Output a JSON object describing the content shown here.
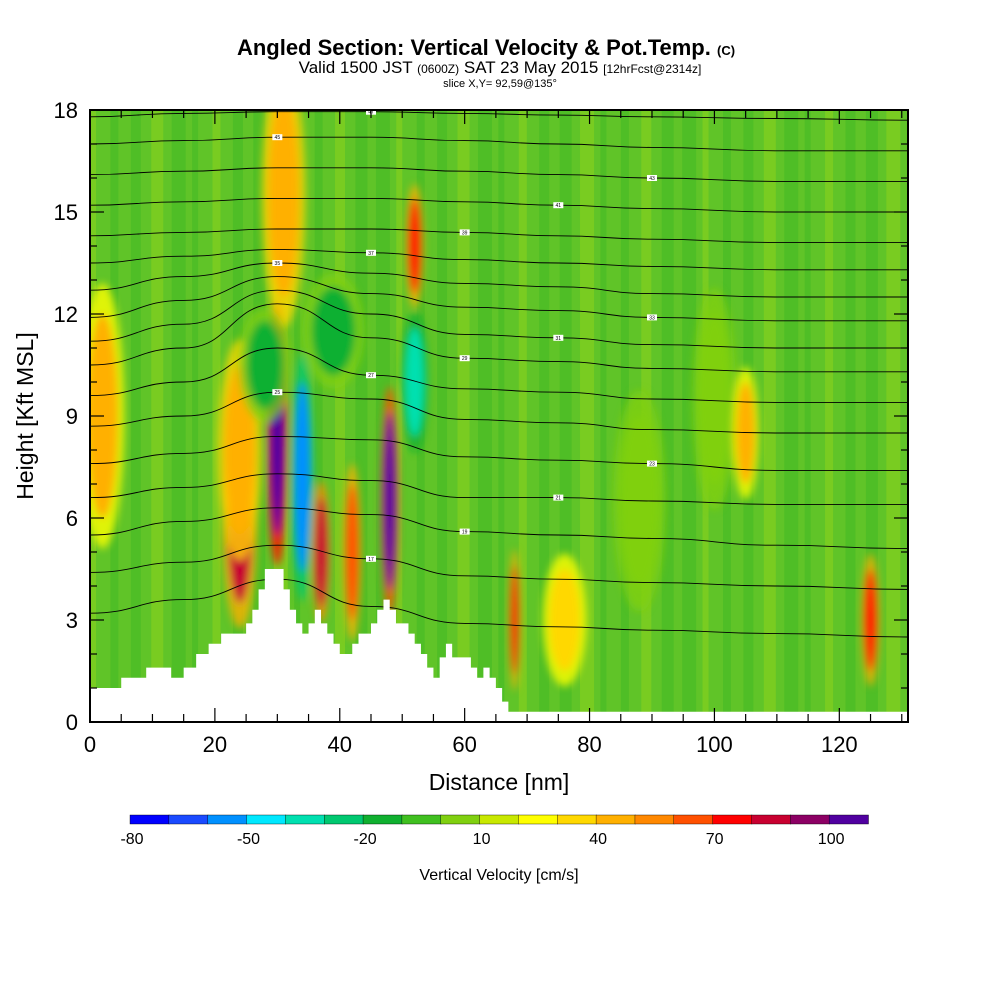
{
  "chart_data": {
    "type": "heatmap",
    "title": "Angled Section: Vertical Velocity & Pot.Temp.",
    "title_suffix": "(C)",
    "subtitle_parts": [
      "Valid 1500 JST",
      "(0600Z)",
      "SAT 23 May 2015",
      "[12hrFcst@2314z]"
    ],
    "subtitle2": "slice X,Y= 92,59@135°",
    "xlabel": "Distance [nm]",
    "ylabel": "Height [Kft MSL]",
    "xlim": [
      0,
      131
    ],
    "ylim": [
      0,
      18
    ],
    "x_ticks": [
      0,
      20,
      40,
      60,
      80,
      100,
      120
    ],
    "y_ticks": [
      0,
      3,
      6,
      9,
      12,
      15,
      18
    ],
    "colorbar": {
      "label": "Vertical Velocity [cm/s]",
      "tick_labels": [
        "-80",
        "-50",
        "-20",
        "10",
        "40",
        "70",
        "100"
      ],
      "colors": [
        "#0000ff",
        "#1a4aff",
        "#0090ff",
        "#00e8ff",
        "#00e0b0",
        "#00c870",
        "#10b030",
        "#40c020",
        "#80d010",
        "#c8e800",
        "#ffff00",
        "#ffd800",
        "#ffb000",
        "#ff8800",
        "#ff5000",
        "#ff0000",
        "#c80030",
        "#8c0064",
        "#5000a0"
      ]
    },
    "terrain_profile": {
      "x": [
        0,
        5,
        5,
        9,
        9,
        13,
        13,
        15,
        15,
        17,
        17,
        19,
        19,
        21,
        21,
        25,
        25,
        26,
        26,
        27,
        27,
        28,
        28,
        31,
        31,
        32,
        32,
        33,
        33,
        34,
        34,
        35,
        35,
        36,
        36,
        37,
        37,
        38,
        38,
        39,
        39,
        40,
        40,
        42,
        42,
        43,
        43,
        45,
        45,
        46,
        46,
        47,
        47,
        48,
        48,
        49,
        49,
        51,
        51,
        52,
        52,
        53,
        53,
        54,
        54,
        55,
        55,
        56,
        56,
        57,
        57,
        58,
        58,
        61,
        61,
        62,
        62,
        63,
        63,
        64,
        64,
        65,
        65,
        66,
        66,
        67,
        67,
        68,
        68,
        70,
        70,
        131
      ],
      "y": [
        1.0,
        1.0,
        1.3,
        1.3,
        1.6,
        1.6,
        1.3,
        1.3,
        1.6,
        1.6,
        2.0,
        2.0,
        2.3,
        2.3,
        2.6,
        2.6,
        2.9,
        2.9,
        3.3,
        3.3,
        3.9,
        3.9,
        4.5,
        4.5,
        3.9,
        3.9,
        3.3,
        3.3,
        2.9,
        2.9,
        2.6,
        2.6,
        2.9,
        2.9,
        3.3,
        3.3,
        2.9,
        2.9,
        2.6,
        2.6,
        2.3,
        2.3,
        2.0,
        2.0,
        2.3,
        2.3,
        2.6,
        2.6,
        2.9,
        2.9,
        3.3,
        3.3,
        3.6,
        3.6,
        3.3,
        3.3,
        2.9,
        2.9,
        2.6,
        2.6,
        2.3,
        2.3,
        2.0,
        2.0,
        1.6,
        1.6,
        1.3,
        1.3,
        1.9,
        1.9,
        2.3,
        2.3,
        1.9,
        1.9,
        1.6,
        1.6,
        1.3,
        1.3,
        1.6,
        1.6,
        1.3,
        1.3,
        1.0,
        1.0,
        0.6,
        0.6,
        0.3,
        0.3,
        0.3,
        0.3,
        0.3,
        0.3
      ]
    },
    "isentropes": [
      {
        "label": "15",
        "pts": [
          [
            0,
            3.2
          ],
          [
            15,
            3.6
          ],
          [
            30,
            4.2
          ],
          [
            45,
            3.4
          ],
          [
            60,
            2.9
          ],
          [
            75,
            2.8
          ],
          [
            90,
            2.7
          ],
          [
            110,
            2.6
          ],
          [
            131,
            2.5
          ]
        ]
      },
      {
        "label": "17",
        "pts": [
          [
            0,
            4.4
          ],
          [
            15,
            4.7
          ],
          [
            30,
            5.2
          ],
          [
            45,
            4.8
          ],
          [
            60,
            4.3
          ],
          [
            75,
            4.2
          ],
          [
            90,
            4.1
          ],
          [
            110,
            4.0
          ],
          [
            131,
            3.9
          ]
        ]
      },
      {
        "label": "19",
        "pts": [
          [
            0,
            5.5
          ],
          [
            15,
            5.9
          ],
          [
            30,
            6.3
          ],
          [
            45,
            6.1
          ],
          [
            60,
            5.6
          ],
          [
            75,
            5.5
          ],
          [
            90,
            5.4
          ],
          [
            110,
            5.2
          ],
          [
            131,
            5.1
          ]
        ]
      },
      {
        "label": "21",
        "pts": [
          [
            0,
            6.6
          ],
          [
            15,
            6.9
          ],
          [
            30,
            7.3
          ],
          [
            45,
            7.1
          ],
          [
            60,
            6.6
          ],
          [
            75,
            6.6
          ],
          [
            90,
            6.5
          ],
          [
            110,
            6.4
          ],
          [
            131,
            6.4
          ]
        ]
      },
      {
        "label": "23",
        "pts": [
          [
            0,
            7.6
          ],
          [
            15,
            7.9
          ],
          [
            30,
            8.4
          ],
          [
            45,
            8.3
          ],
          [
            60,
            7.8
          ],
          [
            75,
            7.7
          ],
          [
            90,
            7.6
          ],
          [
            110,
            7.4
          ],
          [
            131,
            7.4
          ]
        ]
      },
      {
        "label": "25",
        "pts": [
          [
            0,
            8.7
          ],
          [
            15,
            9.0
          ],
          [
            30,
            9.7
          ],
          [
            45,
            9.5
          ],
          [
            60,
            8.9
          ],
          [
            75,
            8.8
          ],
          [
            90,
            8.6
          ],
          [
            110,
            8.5
          ],
          [
            131,
            8.5
          ]
        ]
      },
      {
        "label": "27",
        "pts": [
          [
            0,
            9.6
          ],
          [
            15,
            10.0
          ],
          [
            30,
            11.0
          ],
          [
            45,
            10.2
          ],
          [
            60,
            9.8
          ],
          [
            75,
            9.7
          ],
          [
            90,
            9.5
          ],
          [
            110,
            9.4
          ],
          [
            131,
            9.4
          ]
        ]
      },
      {
        "label": "29",
        "pts": [
          [
            0,
            10.5
          ],
          [
            15,
            11.0
          ],
          [
            30,
            12.3
          ],
          [
            45,
            11.3
          ],
          [
            60,
            10.7
          ],
          [
            75,
            10.6
          ],
          [
            90,
            10.4
          ],
          [
            110,
            10.3
          ],
          [
            131,
            10.3
          ]
        ]
      },
      {
        "label": "31",
        "pts": [
          [
            0,
            11.2
          ],
          [
            15,
            11.7
          ],
          [
            30,
            12.7
          ],
          [
            45,
            12.0
          ],
          [
            60,
            11.4
          ],
          [
            75,
            11.3
          ],
          [
            90,
            11.1
          ],
          [
            110,
            11.0
          ],
          [
            131,
            11.0
          ]
        ]
      },
      {
        "label": "33",
        "pts": [
          [
            0,
            11.9
          ],
          [
            15,
            12.4
          ],
          [
            30,
            13.1
          ],
          [
            45,
            12.6
          ],
          [
            60,
            12.2
          ],
          [
            75,
            12.1
          ],
          [
            90,
            11.9
          ],
          [
            110,
            11.8
          ],
          [
            131,
            11.8
          ]
        ]
      },
      {
        "label": "35",
        "pts": [
          [
            0,
            12.7
          ],
          [
            15,
            13.1
          ],
          [
            30,
            13.5
          ],
          [
            45,
            13.2
          ],
          [
            60,
            12.9
          ],
          [
            75,
            12.8
          ],
          [
            90,
            12.6
          ],
          [
            110,
            12.5
          ],
          [
            131,
            12.5
          ]
        ]
      },
      {
        "label": "37",
        "pts": [
          [
            0,
            13.5
          ],
          [
            15,
            13.7
          ],
          [
            30,
            13.9
          ],
          [
            45,
            13.8
          ],
          [
            60,
            13.6
          ],
          [
            75,
            13.5
          ],
          [
            90,
            13.4
          ],
          [
            110,
            13.3
          ],
          [
            131,
            13.3
          ]
        ]
      },
      {
        "label": "39",
        "pts": [
          [
            0,
            14.3
          ],
          [
            15,
            14.4
          ],
          [
            30,
            14.5
          ],
          [
            45,
            14.5
          ],
          [
            60,
            14.4
          ],
          [
            75,
            14.3
          ],
          [
            90,
            14.2
          ],
          [
            110,
            14.1
          ],
          [
            131,
            14.1
          ]
        ]
      },
      {
        "label": "41",
        "pts": [
          [
            0,
            15.2
          ],
          [
            15,
            15.3
          ],
          [
            30,
            15.4
          ],
          [
            45,
            15.4
          ],
          [
            60,
            15.3
          ],
          [
            75,
            15.2
          ],
          [
            90,
            15.1
          ],
          [
            110,
            15.0
          ],
          [
            131,
            15.0
          ]
        ]
      },
      {
        "label": "43",
        "pts": [
          [
            0,
            16.1
          ],
          [
            15,
            16.2
          ],
          [
            30,
            16.3
          ],
          [
            45,
            16.3
          ],
          [
            60,
            16.2
          ],
          [
            75,
            16.1
          ],
          [
            90,
            16.0
          ],
          [
            110,
            15.9
          ],
          [
            131,
            15.9
          ]
        ]
      },
      {
        "label": "45",
        "pts": [
          [
            0,
            17.0
          ],
          [
            15,
            17.1
          ],
          [
            30,
            17.2
          ],
          [
            45,
            17.2
          ],
          [
            60,
            17.1
          ],
          [
            75,
            17.0
          ],
          [
            90,
            16.9
          ],
          [
            110,
            16.8
          ],
          [
            131,
            16.8
          ]
        ]
      },
      {
        "label": "47",
        "pts": [
          [
            0,
            17.8
          ],
          [
            15,
            17.9
          ],
          [
            30,
            17.95
          ],
          [
            45,
            17.95
          ],
          [
            60,
            17.9
          ],
          [
            75,
            17.85
          ],
          [
            90,
            17.8
          ],
          [
            110,
            17.75
          ],
          [
            131,
            17.7
          ]
        ]
      }
    ],
    "velocity_features": [
      {
        "x": 2,
        "y": 9.0,
        "wx": 2.5,
        "wy": 3.0,
        "v": 25
      },
      {
        "x": 24,
        "y": 6.0,
        "wx": 2.0,
        "wy": 2.5,
        "v": 65
      },
      {
        "x": 24,
        "y": 8.0,
        "wx": 2.5,
        "wy": 2.5,
        "v": 30
      },
      {
        "x": 30,
        "y": 8.5,
        "wx": 1.2,
        "wy": 3.0,
        "v": 115
      },
      {
        "x": 31,
        "y": 15.5,
        "wx": 2.5,
        "wy": 3.0,
        "v": 30
      },
      {
        "x": 34,
        "y": 7.2,
        "wx": 1.3,
        "wy": 2.8,
        "v": -75
      },
      {
        "x": 37,
        "y": 5.0,
        "wx": 1.0,
        "wy": 1.6,
        "v": 70
      },
      {
        "x": 42,
        "y": 5.0,
        "wx": 1.0,
        "wy": 2.0,
        "v": 50
      },
      {
        "x": 48,
        "y": 6.5,
        "wx": 1.0,
        "wy": 2.6,
        "v": 100
      },
      {
        "x": 52,
        "y": 10.0,
        "wx": 1.5,
        "wy": 1.6,
        "v": -55
      },
      {
        "x": 52,
        "y": 14.0,
        "wx": 1.0,
        "wy": 1.4,
        "v": 55
      },
      {
        "x": 28,
        "y": 10.5,
        "wx": 3.0,
        "wy": 1.3,
        "v": -30
      },
      {
        "x": 39,
        "y": 11.5,
        "wx": 3.5,
        "wy": 1.3,
        "v": -28
      },
      {
        "x": 68,
        "y": 3.0,
        "wx": 0.6,
        "wy": 1.6,
        "v": 55
      },
      {
        "x": 76,
        "y": 3.0,
        "wx": 2.5,
        "wy": 1.5,
        "v": 20
      },
      {
        "x": 88,
        "y": 6.5,
        "wx": 3.0,
        "wy": 2.5,
        "v": -12
      },
      {
        "x": 100,
        "y": 9.5,
        "wx": 2.5,
        "wy": 2.5,
        "v": -15
      },
      {
        "x": 105,
        "y": 8.5,
        "wx": 1.5,
        "wy": 1.5,
        "v": 28
      },
      {
        "x": 125,
        "y": 3.0,
        "wx": 1.0,
        "wy": 1.5,
        "v": 60
      }
    ]
  }
}
